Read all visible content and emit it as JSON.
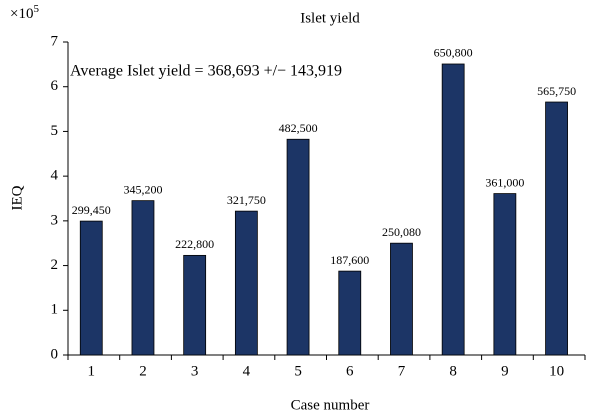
{
  "chart_data": {
    "type": "bar",
    "title": "Islet yield",
    "x_label": "Case number",
    "y_label": "IEQ",
    "y_multiplier_base": "×10",
    "y_multiplier_exponent": "5",
    "annotation": "Average Islet yield = 368,693 +/− 143,919",
    "categories": [
      "1",
      "2",
      "3",
      "4",
      "5",
      "6",
      "7",
      "8",
      "9",
      "10"
    ],
    "values": [
      2.9945,
      3.452,
      2.228,
      3.2175,
      4.825,
      1.876,
      2.5008,
      6.508,
      3.61,
      5.6575
    ],
    "value_labels": [
      "299,450",
      "345,200",
      "222,800",
      "321,750",
      "482,500",
      "187,600",
      "250,080",
      "650,800",
      "361,000",
      "565,750"
    ],
    "color": "#1c3566",
    "ylim": [
      0,
      7
    ],
    "yticks": [
      0,
      1,
      2,
      3,
      4,
      5,
      6,
      7
    ],
    "grid": false
  }
}
